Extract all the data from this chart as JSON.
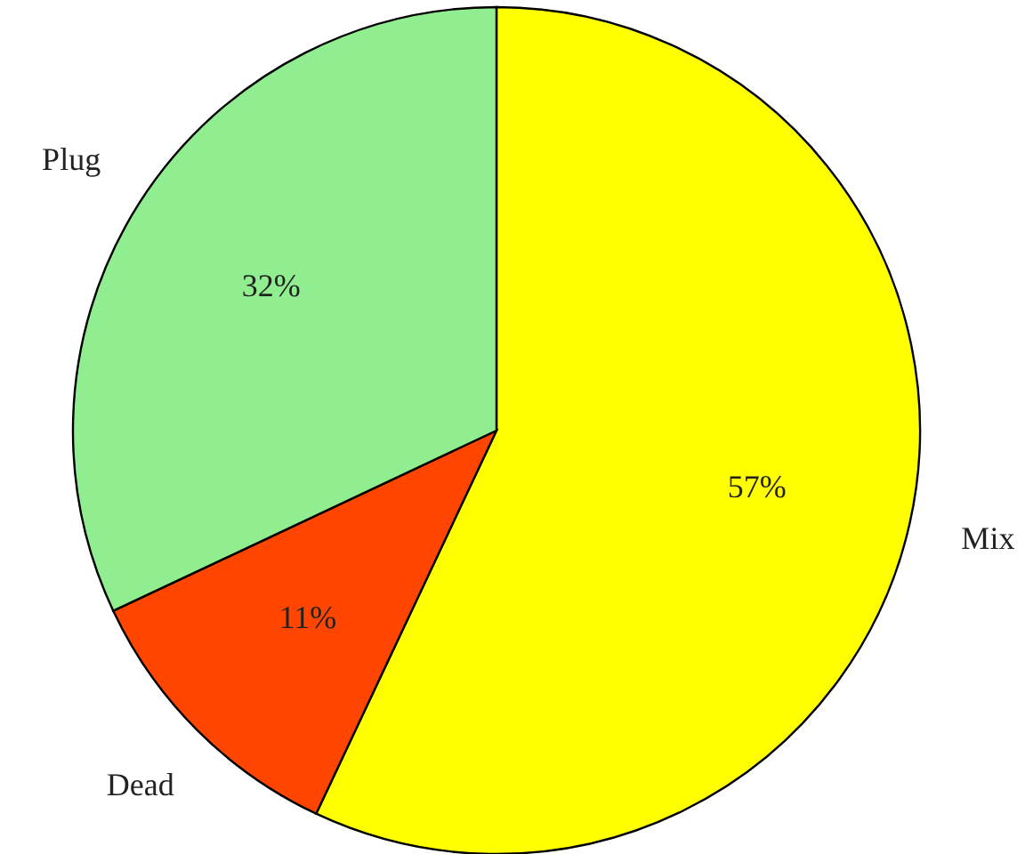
{
  "chart_data": {
    "type": "pie",
    "categories": [
      "Mix",
      "Dead",
      "Plug"
    ],
    "values": [
      57,
      11,
      32
    ],
    "colors": [
      "#ffff00",
      "#ff4500",
      "#90ee90"
    ],
    "value_labels": [
      "57%",
      "11%",
      "32%"
    ]
  }
}
